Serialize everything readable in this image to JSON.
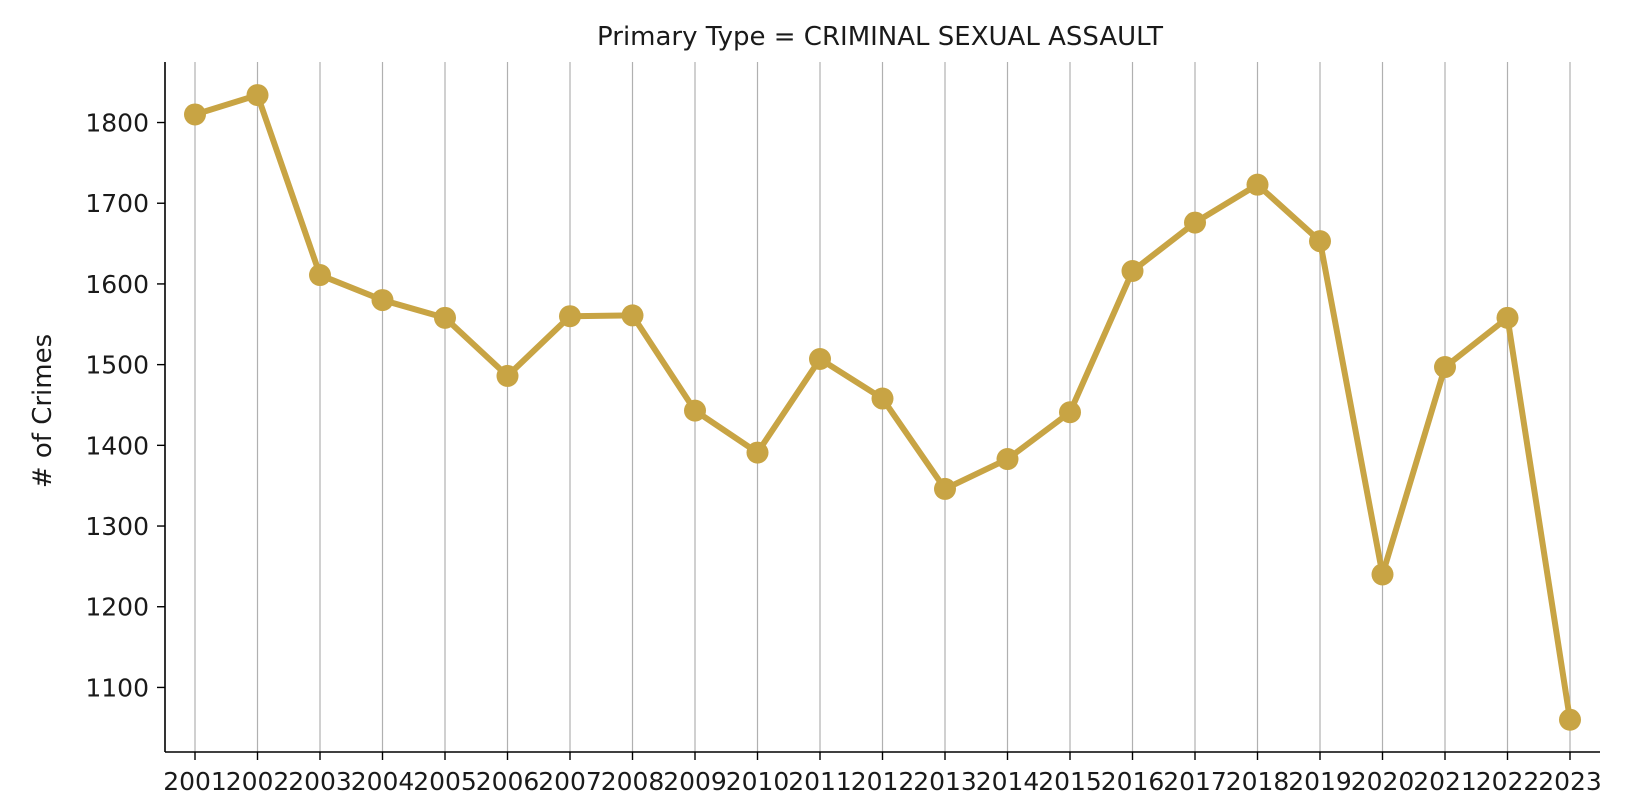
{
  "chart_data": {
    "type": "line",
    "title": "Primary Type = CRIMINAL SEXUAL ASSAULT",
    "xlabel": "",
    "ylabel": "# of Crimes",
    "categories": [
      "2001",
      "2002",
      "2003",
      "2004",
      "2005",
      "2006",
      "2007",
      "2008",
      "2009",
      "2010",
      "2011",
      "2012",
      "2013",
      "2014",
      "2015",
      "2016",
      "2017",
      "2018",
      "2019",
      "2020",
      "2021",
      "2022",
      "2023"
    ],
    "series": [
      {
        "values": [
          1810,
          1834,
          1611,
          1580,
          1558,
          1486,
          1560,
          1561,
          1443,
          1391,
          1507,
          1458,
          1346,
          1383,
          1441,
          1616,
          1676,
          1723,
          1653,
          1240,
          1497,
          1558,
          1060
        ]
      }
    ],
    "ylim": [
      1020,
      1875
    ],
    "yticks": [
      1100,
      1200,
      1300,
      1400,
      1500,
      1600,
      1700,
      1800
    ],
    "grid": "vertical",
    "color": "#c8a444"
  }
}
